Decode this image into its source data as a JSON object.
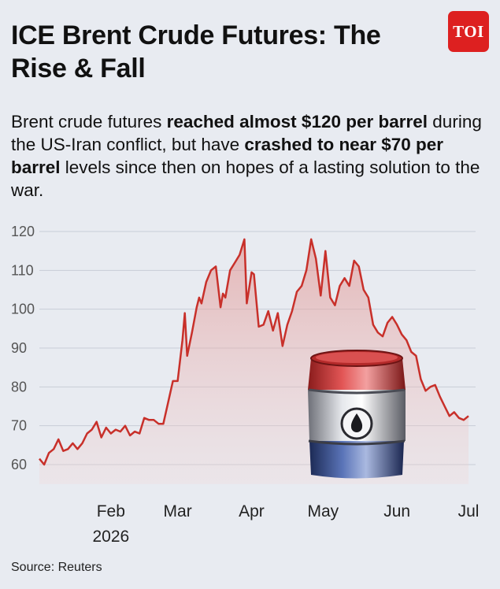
{
  "header": {
    "title": "ICE Brent Crude Futures: The Rise & Fall",
    "logo_text": "TOI"
  },
  "subtitle": {
    "p1": "Brent crude futures ",
    "b1": "reached almost $120 per barrel",
    "p2": " during the US-Iran conflict, but have ",
    "b2": "crashed to near $70 per barrel",
    "p3": " levels since then on hopes of a lasting solution to the war."
  },
  "source": "Source: Reuters",
  "colors": {
    "line": "#c8302a",
    "logo_bg": "#dd2020",
    "background": "#e8ebf1"
  },
  "icons": {
    "barrel": "oil-barrel-icon"
  },
  "chart_data": {
    "type": "area",
    "title": "ICE Brent Crude Futures: The Rise & Fall",
    "xlabel": "",
    "ylabel": "",
    "ylim": [
      55,
      120
    ],
    "yticks": [
      60,
      70,
      80,
      90,
      100,
      110,
      120
    ],
    "grid": true,
    "x_tick_labels": [
      {
        "label": "Feb",
        "sub": "2026",
        "x": "2026-02-01"
      },
      {
        "label": "Mar",
        "sub": "",
        "x": "2026-03-01"
      },
      {
        "label": "Apr",
        "sub": "",
        "x": "2026-04-01"
      },
      {
        "label": "May",
        "sub": "",
        "x": "2026-05-01"
      },
      {
        "label": "Jun",
        "sub": "",
        "x": "2026-06-01"
      },
      {
        "label": "Jul",
        "sub": "",
        "x": "2026-07-01"
      }
    ],
    "series": [
      {
        "name": "",
        "points": [
          [
            "2026-01-02",
            61.5
          ],
          [
            "2026-01-04",
            60.0
          ],
          [
            "2026-01-06",
            63.0
          ],
          [
            "2026-01-08",
            64.0
          ],
          [
            "2026-01-10",
            66.5
          ],
          [
            "2026-01-12",
            63.5
          ],
          [
            "2026-01-14",
            64.0
          ],
          [
            "2026-01-16",
            65.5
          ],
          [
            "2026-01-18",
            64.0
          ],
          [
            "2026-01-20",
            65.5
          ],
          [
            "2026-01-22",
            68.0
          ],
          [
            "2026-01-24",
            69.0
          ],
          [
            "2026-01-26",
            71.0
          ],
          [
            "2026-01-28",
            67.0
          ],
          [
            "2026-01-30",
            69.5
          ],
          [
            "2026-02-01",
            68.0
          ],
          [
            "2026-02-03",
            69.0
          ],
          [
            "2026-02-05",
            68.5
          ],
          [
            "2026-02-07",
            70.0
          ],
          [
            "2026-02-09",
            67.5
          ],
          [
            "2026-02-11",
            68.5
          ],
          [
            "2026-02-13",
            68.0
          ],
          [
            "2026-02-15",
            72.0
          ],
          [
            "2026-02-17",
            71.5
          ],
          [
            "2026-02-19",
            71.5
          ],
          [
            "2026-02-21",
            70.5
          ],
          [
            "2026-02-23",
            70.5
          ],
          [
            "2026-02-25",
            76.0
          ],
          [
            "2026-02-27",
            81.5
          ],
          [
            "2026-03-01",
            81.5
          ],
          [
            "2026-03-03",
            92.0
          ],
          [
            "2026-03-04",
            99.0
          ],
          [
            "2026-03-05",
            88.0
          ],
          [
            "2026-03-07",
            94.0
          ],
          [
            "2026-03-09",
            100.5
          ],
          [
            "2026-03-10",
            103.0
          ],
          [
            "2026-03-11",
            101.5
          ],
          [
            "2026-03-13",
            107.0
          ],
          [
            "2026-03-15",
            110.0
          ],
          [
            "2026-03-17",
            111.0
          ],
          [
            "2026-03-19",
            100.5
          ],
          [
            "2026-03-20",
            104.0
          ],
          [
            "2026-03-21",
            103.0
          ],
          [
            "2026-03-23",
            110.0
          ],
          [
            "2026-03-25",
            112.0
          ],
          [
            "2026-03-27",
            114.0
          ],
          [
            "2026-03-29",
            118.0
          ],
          [
            "2026-03-30",
            101.5
          ],
          [
            "2026-04-01",
            109.5
          ],
          [
            "2026-04-02",
            109.0
          ],
          [
            "2026-04-04",
            95.5
          ],
          [
            "2026-04-06",
            96.0
          ],
          [
            "2026-04-08",
            99.5
          ],
          [
            "2026-04-10",
            94.5
          ],
          [
            "2026-04-12",
            99.0
          ],
          [
            "2026-04-14",
            90.5
          ],
          [
            "2026-04-16",
            96.0
          ],
          [
            "2026-04-18",
            99.5
          ],
          [
            "2026-04-20",
            104.5
          ],
          [
            "2026-04-22",
            106.0
          ],
          [
            "2026-04-24",
            110.0
          ],
          [
            "2026-04-26",
            118.0
          ],
          [
            "2026-04-28",
            113.0
          ],
          [
            "2026-04-30",
            103.5
          ],
          [
            "2026-05-02",
            115.0
          ],
          [
            "2026-05-04",
            103.0
          ],
          [
            "2026-05-06",
            101.0
          ],
          [
            "2026-05-08",
            106.0
          ],
          [
            "2026-05-10",
            108.0
          ],
          [
            "2026-05-12",
            106.0
          ],
          [
            "2026-05-14",
            112.5
          ],
          [
            "2026-05-16",
            111.0
          ],
          [
            "2026-05-18",
            105.0
          ],
          [
            "2026-05-20",
            103.0
          ],
          [
            "2026-05-22",
            96.0
          ],
          [
            "2026-05-24",
            94.0
          ],
          [
            "2026-05-26",
            93.0
          ],
          [
            "2026-05-28",
            96.5
          ],
          [
            "2026-05-30",
            98.0
          ],
          [
            "2026-06-01",
            96.0
          ],
          [
            "2026-06-03",
            93.5
          ],
          [
            "2026-06-05",
            92.0
          ],
          [
            "2026-06-07",
            89.0
          ],
          [
            "2026-06-09",
            88.0
          ],
          [
            "2026-06-11",
            82.0
          ],
          [
            "2026-06-13",
            79.0
          ],
          [
            "2026-06-15",
            80.0
          ],
          [
            "2026-06-17",
            80.5
          ],
          [
            "2026-06-19",
            77.5
          ],
          [
            "2026-06-21",
            75.0
          ],
          [
            "2026-06-23",
            72.5
          ],
          [
            "2026-06-25",
            73.5
          ],
          [
            "2026-06-27",
            72.0
          ],
          [
            "2026-06-29",
            71.5
          ],
          [
            "2026-07-01",
            72.5
          ]
        ]
      }
    ]
  }
}
